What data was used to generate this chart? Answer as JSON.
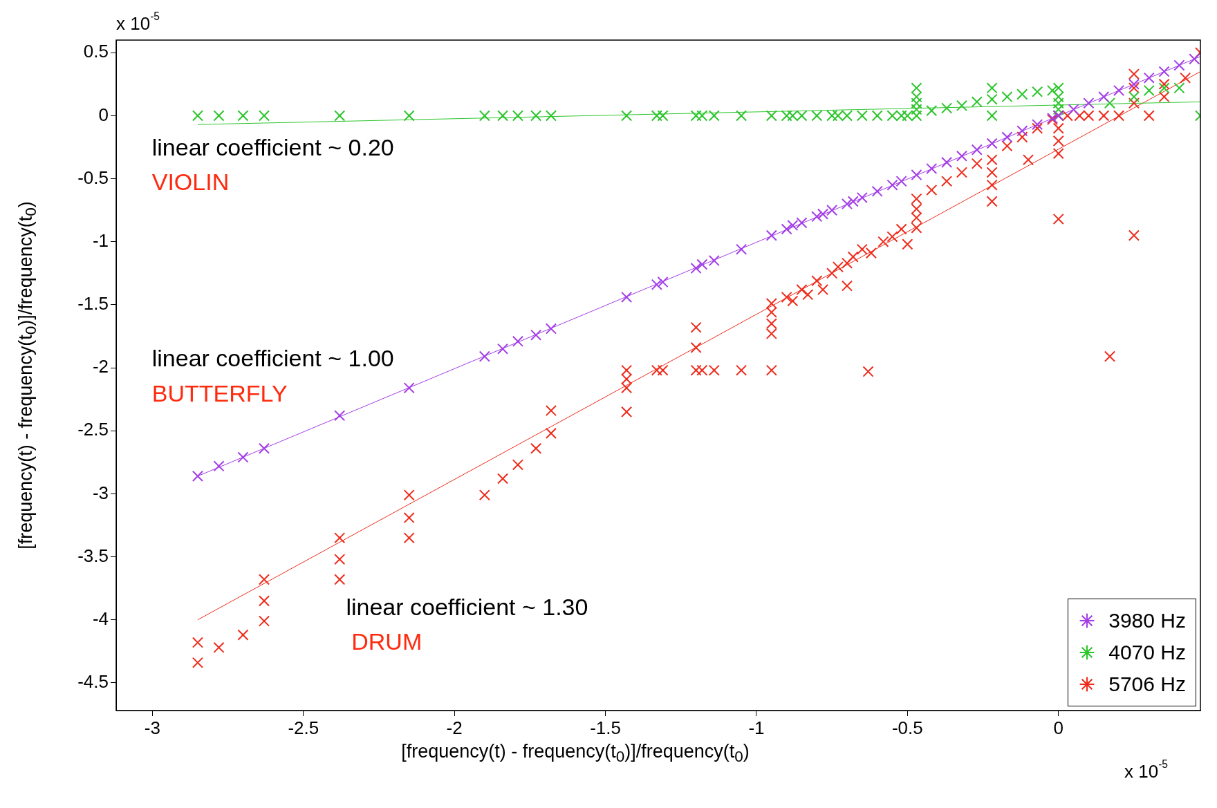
{
  "chart_data": {
    "type": "scatter",
    "xlabel": "[frequency(t) - frequency(t$_{0}$)]/frequency(t$_{0}$)",
    "ylabel": "[frequency(t) - frequency(t$_{0}$)]/frequency(t$_{0}$)",
    "xlim": [
      -3.12,
      0.47
    ],
    "xticks": [
      -3,
      -2.5,
      -2,
      -1.5,
      -1,
      -0.5,
      0
    ],
    "ylim": [
      -4.72,
      0.6
    ],
    "yticks": [
      -4.5,
      -4,
      -3.5,
      -3,
      -2.5,
      -2,
      -1.5,
      -1,
      -0.5,
      0,
      0.5
    ],
    "marker": "cross",
    "legend": "bottom right",
    "grid": false,
    "annotations": [
      "linear coefficient ~ 0.20",
      "VIOLIN",
      "linear coefficient ~ 1.00",
      "BUTTERFLY",
      "linear coefficient ~ 1.30",
      "DRUM",
      "x 10$^{-5}$",
      "x 10$^{-5}$"
    ],
    "series": [
      {
        "name": "3980 Hz",
        "color": "#a33de6",
        "x": [
          -2.85,
          -2.78,
          -2.7,
          -2.63,
          -2.38,
          -2.15,
          -1.9,
          -1.84,
          -1.79,
          -1.73,
          -1.68,
          -1.43,
          -1.33,
          -1.31,
          -1.2,
          -1.18,
          -1.14,
          -1.05,
          -0.95,
          -0.9,
          -0.88,
          -0.85,
          -0.8,
          -0.78,
          -0.75,
          -0.7,
          -0.68,
          -0.65,
          -0.6,
          -0.55,
          -0.52,
          -0.47,
          -0.42,
          -0.37,
          -0.32,
          -0.27,
          -0.22,
          -0.17,
          -0.12,
          -0.07,
          -0.02,
          0,
          0.05,
          0.1,
          0.15,
          0.2,
          0.25,
          0.3,
          0.35,
          0.4,
          0.45
        ],
        "values": [
          -2.86,
          -2.78,
          -2.71,
          -2.64,
          -2.38,
          -2.16,
          -1.91,
          -1.85,
          -1.79,
          -1.74,
          -1.69,
          -1.44,
          -1.34,
          -1.32,
          -1.21,
          -1.18,
          -1.15,
          -1.06,
          -0.95,
          -0.9,
          -0.87,
          -0.85,
          -0.8,
          -0.78,
          -0.75,
          -0.7,
          -0.68,
          -0.65,
          -0.6,
          -0.55,
          -0.52,
          -0.47,
          -0.42,
          -0.37,
          -0.32,
          -0.27,
          -0.22,
          -0.17,
          -0.12,
          -0.07,
          -0.02,
          0,
          0.05,
          0.1,
          0.15,
          0.2,
          0.25,
          0.3,
          0.35,
          0.4,
          0.45
        ]
      },
      {
        "name": "4070 Hz",
        "color": "#2cc52c",
        "x": [
          -2.85,
          -2.78,
          -2.7,
          -2.63,
          -2.38,
          -2.15,
          -1.9,
          -1.84,
          -1.79,
          -1.73,
          -1.68,
          -1.43,
          -1.33,
          -1.31,
          -1.2,
          -1.18,
          -1.14,
          -1.05,
          -0.95,
          -0.9,
          -0.88,
          -0.85,
          -0.8,
          -0.75,
          -0.73,
          -0.7,
          -0.65,
          -0.6,
          -0.55,
          -0.52,
          -0.5,
          -0.47,
          -0.47,
          -0.47,
          -0.47,
          -0.47,
          -0.42,
          -0.37,
          -0.32,
          -0.27,
          -0.22,
          -0.22,
          -0.22,
          -0.17,
          -0.12,
          -0.07,
          -0.02,
          0,
          0,
          0,
          0,
          0,
          0.17,
          0.25,
          0.3,
          0.35,
          0.4,
          0.47
        ],
        "values": [
          0,
          0,
          0,
          0,
          0,
          0,
          0,
          0,
          0,
          0,
          0,
          0,
          0,
          0,
          0,
          0,
          0,
          0,
          0,
          0,
          0,
          0,
          0,
          0,
          0,
          0,
          0,
          0,
          0,
          0,
          0,
          0,
          0.05,
          0.1,
          0.15,
          0.22,
          0.04,
          0.06,
          0.08,
          0.11,
          0.13,
          0.22,
          0,
          0.15,
          0.17,
          0.19,
          0.2,
          0,
          0.05,
          0.1,
          0.15,
          0.22,
          0.1,
          0.15,
          0.2,
          0.22,
          0.22,
          0
        ]
      },
      {
        "name": "5706 Hz",
        "color": "#ee2b1b",
        "x": [
          -2.85,
          -2.85,
          -2.78,
          -2.7,
          -2.63,
          -2.63,
          -2.63,
          -2.38,
          -2.38,
          -2.38,
          -2.15,
          -2.15,
          -2.15,
          -1.9,
          -1.84,
          -1.79,
          -1.73,
          -1.68,
          -1.68,
          -1.43,
          -1.43,
          -1.43,
          -1.43,
          -1.33,
          -1.31,
          -1.2,
          -1.2,
          -1.2,
          -1.18,
          -1.14,
          -1.05,
          -0.95,
          -0.95,
          -0.95,
          -0.95,
          -0.95,
          -0.9,
          -0.88,
          -0.85,
          -0.83,
          -0.8,
          -0.78,
          -0.75,
          -0.73,
          -0.7,
          -0.7,
          -0.68,
          -0.65,
          -0.63,
          -0.62,
          -0.58,
          -0.55,
          -0.52,
          -0.5,
          -0.47,
          -0.47,
          -0.47,
          -0.47,
          -0.42,
          -0.37,
          -0.32,
          -0.27,
          -0.22,
          -0.22,
          -0.22,
          -0.22,
          -0.17,
          -0.12,
          -0.1,
          -0.07,
          -0.02,
          0,
          0,
          0,
          0,
          0,
          0.03,
          0.07,
          0.1,
          0.15,
          0.17,
          0.2,
          0.25,
          0.25,
          0.25,
          0.25,
          0.3,
          0.35,
          0.35,
          0.42,
          0.47
        ],
        "values": [
          -4.18,
          -4.34,
          -4.22,
          -4.12,
          -3.68,
          -3.85,
          -4.01,
          -3.35,
          -3.52,
          -3.68,
          -3.01,
          -3.19,
          -3.35,
          -3.01,
          -2.88,
          -2.77,
          -2.64,
          -2.34,
          -2.52,
          -2.02,
          -2.09,
          -2.16,
          -2.35,
          -2.02,
          -2.02,
          -1.68,
          -1.84,
          -2.02,
          -2.02,
          -2.02,
          -2.02,
          -1.49,
          -1.56,
          -1.65,
          -1.73,
          -2.02,
          -1.44,
          -1.47,
          -1.38,
          -1.42,
          -1.31,
          -1.38,
          -1.25,
          -1.2,
          -1.17,
          -1.35,
          -1.12,
          -1.06,
          -2.03,
          -1.09,
          -1,
          -0.96,
          -0.9,
          -1.02,
          -0.66,
          -0.74,
          -0.81,
          -0.89,
          -0.59,
          -0.52,
          -0.45,
          -0.38,
          -0.35,
          -0.45,
          -0.55,
          -0.68,
          -0.24,
          -0.17,
          -0.35,
          -0.1,
          -0.03,
          0,
          -0.1,
          -0.2,
          -0.3,
          -0.82,
          0,
          0,
          0,
          0,
          -1.91,
          0,
          -0.95,
          0.1,
          0.22,
          0.33,
          0,
          0.15,
          0.25,
          0.3,
          0.5
        ]
      },
      {
        "type": "line",
        "marker": "none",
        "color": "#a33de6",
        "x": [
          -2.85,
          0.47
        ],
        "values": [
          -2.86,
          0.47
        ]
      },
      {
        "type": "line",
        "marker": "none",
        "color": "#2cc52c",
        "x": [
          -2.85,
          0.47
        ],
        "values": [
          -0.07,
          0.11
        ]
      },
      {
        "type": "line",
        "marker": "none",
        "color": "#ee2b1b",
        "x": [
          -2.85,
          0.47
        ],
        "values": [
          -4.0,
          0.35
        ]
      }
    ]
  }
}
